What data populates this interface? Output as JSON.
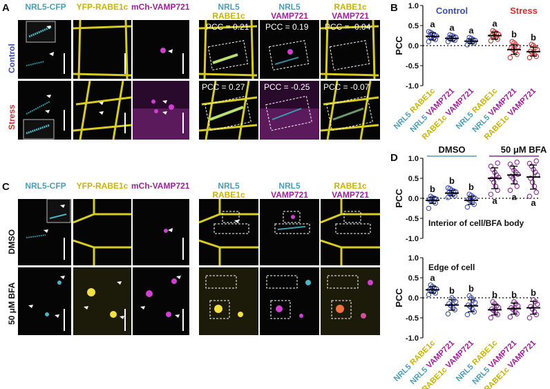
{
  "panel_labels": {
    "A": "A",
    "B": "B",
    "C": "C",
    "D": "D"
  },
  "micro_headers": {
    "nrl5_cfp": "NRL5-CFP",
    "yfp_rabe1c": "YFP-RABE1c",
    "mch_vamp721": "mCh-VAMP721",
    "nrl5": "NRL5",
    "rabe1c": "RABE1c",
    "vamp721": "VAMP721"
  },
  "rows_A": {
    "control": "Control",
    "stress": "Stress"
  },
  "rows_C": {
    "dmso": "DMSO",
    "bfa": "50 μM BFA"
  },
  "pcc_values_A": {
    "control": [
      "PCC = 0.21",
      "PCC = 0.19",
      "PCC = -0.04"
    ],
    "stress": [
      "PCC = 0.27",
      "PCC = -0.25",
      "PCC = -0.07"
    ]
  },
  "colors": {
    "cyan": "#4a9fb5",
    "yellow": "#c8b400",
    "magenta": "#a0209a",
    "control_blue": "#3c4db0",
    "stress_red": "#d03030",
    "bfa_purple": "#8a2a9a"
  },
  "chart_data": [
    {
      "type": "scatter",
      "panel": "B",
      "ylabel": "PCC",
      "ylim": [
        -1.0,
        1.0
      ],
      "yticks": [
        "1.0",
        "0.5",
        "0.0",
        "-0.5",
        "-1.0"
      ],
      "group_labels": [
        "Control",
        "Stress"
      ],
      "categories": [
        {
          "a": "NRL5",
          "b": "RABE1c",
          "a_color": "#4a9fb5",
          "b_color": "#c8b400"
        },
        {
          "a": "NRL5",
          "b": "VAMP721",
          "a_color": "#4a9fb5",
          "b_color": "#a0209a"
        },
        {
          "a": "RABE1c",
          "b": "VAMP721",
          "a_color": "#c8b400",
          "b_color": "#a0209a"
        },
        {
          "a": "NRL5",
          "b": "RABE1c",
          "a_color": "#4a9fb5",
          "b_color": "#c8b400"
        },
        {
          "a": "NRL5",
          "b": "VAMP721",
          "a_color": "#4a9fb5",
          "b_color": "#a0209a"
        },
        {
          "a": "RABE1c",
          "b": "VAMP721",
          "a_color": "#c8b400",
          "b_color": "#a0209a"
        }
      ],
      "means": [
        0.23,
        0.18,
        0.11,
        0.25,
        -0.1,
        -0.15
      ],
      "sd": [
        0.09,
        0.06,
        0.06,
        0.09,
        0.12,
        0.11
      ],
      "letters": [
        "a",
        "a",
        "a",
        "a",
        "b",
        "b"
      ],
      "point_colors": [
        "#3c4db0",
        "#3c4db0",
        "#3c4db0",
        "#d03030",
        "#d03030",
        "#d03030"
      ],
      "points": [
        [
          0.1,
          0.15,
          0.18,
          0.2,
          0.22,
          0.24,
          0.26,
          0.3,
          0.33,
          0.35
        ],
        [
          0.1,
          0.13,
          0.15,
          0.17,
          0.19,
          0.21,
          0.23,
          0.25,
          0.27
        ],
        [
          0.02,
          0.06,
          0.09,
          0.1,
          0.12,
          0.13,
          0.15,
          0.18,
          0.2
        ],
        [
          0.12,
          0.16,
          0.2,
          0.22,
          0.25,
          0.28,
          0.31,
          0.34,
          0.37
        ],
        [
          -0.3,
          -0.22,
          -0.15,
          -0.1,
          -0.06,
          -0.03,
          0.02,
          0.07,
          0.1
        ],
        [
          -0.3,
          -0.27,
          -0.22,
          -0.18,
          -0.14,
          -0.1,
          -0.05,
          0.0,
          0.03
        ]
      ]
    },
    {
      "type": "scatter",
      "panel": "D-top",
      "ylabel": "PCC",
      "ylim": [
        -1.0,
        1.0
      ],
      "yticks": [
        "1.0",
        "0.5",
        "0.0",
        "-0.5",
        "-1.0"
      ],
      "group_labels": [
        "DMSO",
        "50 μM BFA"
      ],
      "annotation": "Interior of cell/BFA body",
      "means": [
        -0.05,
        0.13,
        -0.05,
        0.5,
        0.58,
        0.53
      ],
      "sd": [
        0.08,
        0.07,
        0.1,
        0.26,
        0.22,
        0.3
      ],
      "letters": [
        "b",
        "b",
        "b",
        "a",
        "a",
        "a"
      ],
      "letter_pos": [
        "above",
        "above",
        "above",
        "below",
        "below",
        "below"
      ],
      "point_colors": [
        "#3c4db0",
        "#3c4db0",
        "#3c4db0",
        "#8a2a9a",
        "#8a2a9a",
        "#8a2a9a"
      ],
      "points": [
        [
          -0.25,
          -0.12,
          -0.08,
          -0.06,
          -0.04,
          -0.02,
          0.0,
          0.02,
          0.05
        ],
        [
          0.02,
          0.06,
          0.1,
          0.12,
          0.14,
          0.16,
          0.18,
          0.2,
          0.24,
          0.26
        ],
        [
          -0.22,
          -0.15,
          -0.1,
          -0.06,
          -0.03,
          0.0,
          0.03,
          0.07,
          0.1
        ],
        [
          0.1,
          0.2,
          0.3,
          0.4,
          0.48,
          0.52,
          0.58,
          0.65,
          0.72,
          0.8,
          0.88
        ],
        [
          0.2,
          0.3,
          0.4,
          0.5,
          0.55,
          0.6,
          0.65,
          0.7,
          0.78,
          0.85,
          0.9
        ],
        [
          0.05,
          0.15,
          0.3,
          0.4,
          0.5,
          0.58,
          0.65,
          0.72,
          0.8,
          0.87,
          0.93
        ]
      ]
    },
    {
      "type": "scatter",
      "panel": "D-bottom",
      "ylabel": "PCC",
      "ylim": [
        -1.0,
        1.0
      ],
      "yticks": [
        "1.0",
        "0.5",
        "0.0",
        "-0.5",
        "-1.0"
      ],
      "annotation": "Edge of cell",
      "categories": [
        {
          "a": "NRL5",
          "b": "RABE1c",
          "a_color": "#4a9fb5",
          "b_color": "#c8b400"
        },
        {
          "a": "NRL5",
          "b": "VAMP721",
          "a_color": "#4a9fb5",
          "b_color": "#a0209a"
        },
        {
          "a": "RABE1c",
          "b": "VAMP721",
          "a_color": "#c8b400",
          "b_color": "#a0209a"
        },
        {
          "a": "NRL5",
          "b": "RABE1c",
          "a_color": "#4a9fb5",
          "b_color": "#c8b400"
        },
        {
          "a": "NRL5",
          "b": "VAMP721",
          "a_color": "#4a9fb5",
          "b_color": "#a0209a"
        },
        {
          "a": "RABE1c",
          "b": "VAMP721",
          "a_color": "#c8b400",
          "b_color": "#a0209a"
        }
      ],
      "means": [
        0.2,
        -0.18,
        -0.2,
        -0.3,
        -0.27,
        -0.25
      ],
      "sd": [
        0.08,
        0.13,
        0.15,
        0.13,
        0.14,
        0.16
      ],
      "letters": [
        "a",
        "b",
        "b",
        "b",
        "b",
        "b"
      ],
      "point_colors": [
        "#3c4db0",
        "#3c4db0",
        "#3c4db0",
        "#8a2a9a",
        "#8a2a9a",
        "#8a2a9a"
      ],
      "points": [
        [
          0.08,
          0.12,
          0.15,
          0.18,
          0.2,
          0.22,
          0.25,
          0.28,
          0.32
        ],
        [
          -0.4,
          -0.3,
          -0.25,
          -0.2,
          -0.15,
          -0.1,
          -0.05,
          0.0
        ],
        [
          -0.42,
          -0.35,
          -0.28,
          -0.22,
          -0.18,
          -0.12,
          -0.06,
          0.0,
          0.05
        ],
        [
          -0.5,
          -0.42,
          -0.36,
          -0.32,
          -0.28,
          -0.24,
          -0.2,
          -0.15,
          -0.1
        ],
        [
          -0.48,
          -0.4,
          -0.34,
          -0.29,
          -0.25,
          -0.2,
          -0.15,
          -0.1
        ],
        [
          -0.5,
          -0.42,
          -0.35,
          -0.28,
          -0.22,
          -0.16,
          -0.1,
          -0.05
        ]
      ]
    }
  ]
}
